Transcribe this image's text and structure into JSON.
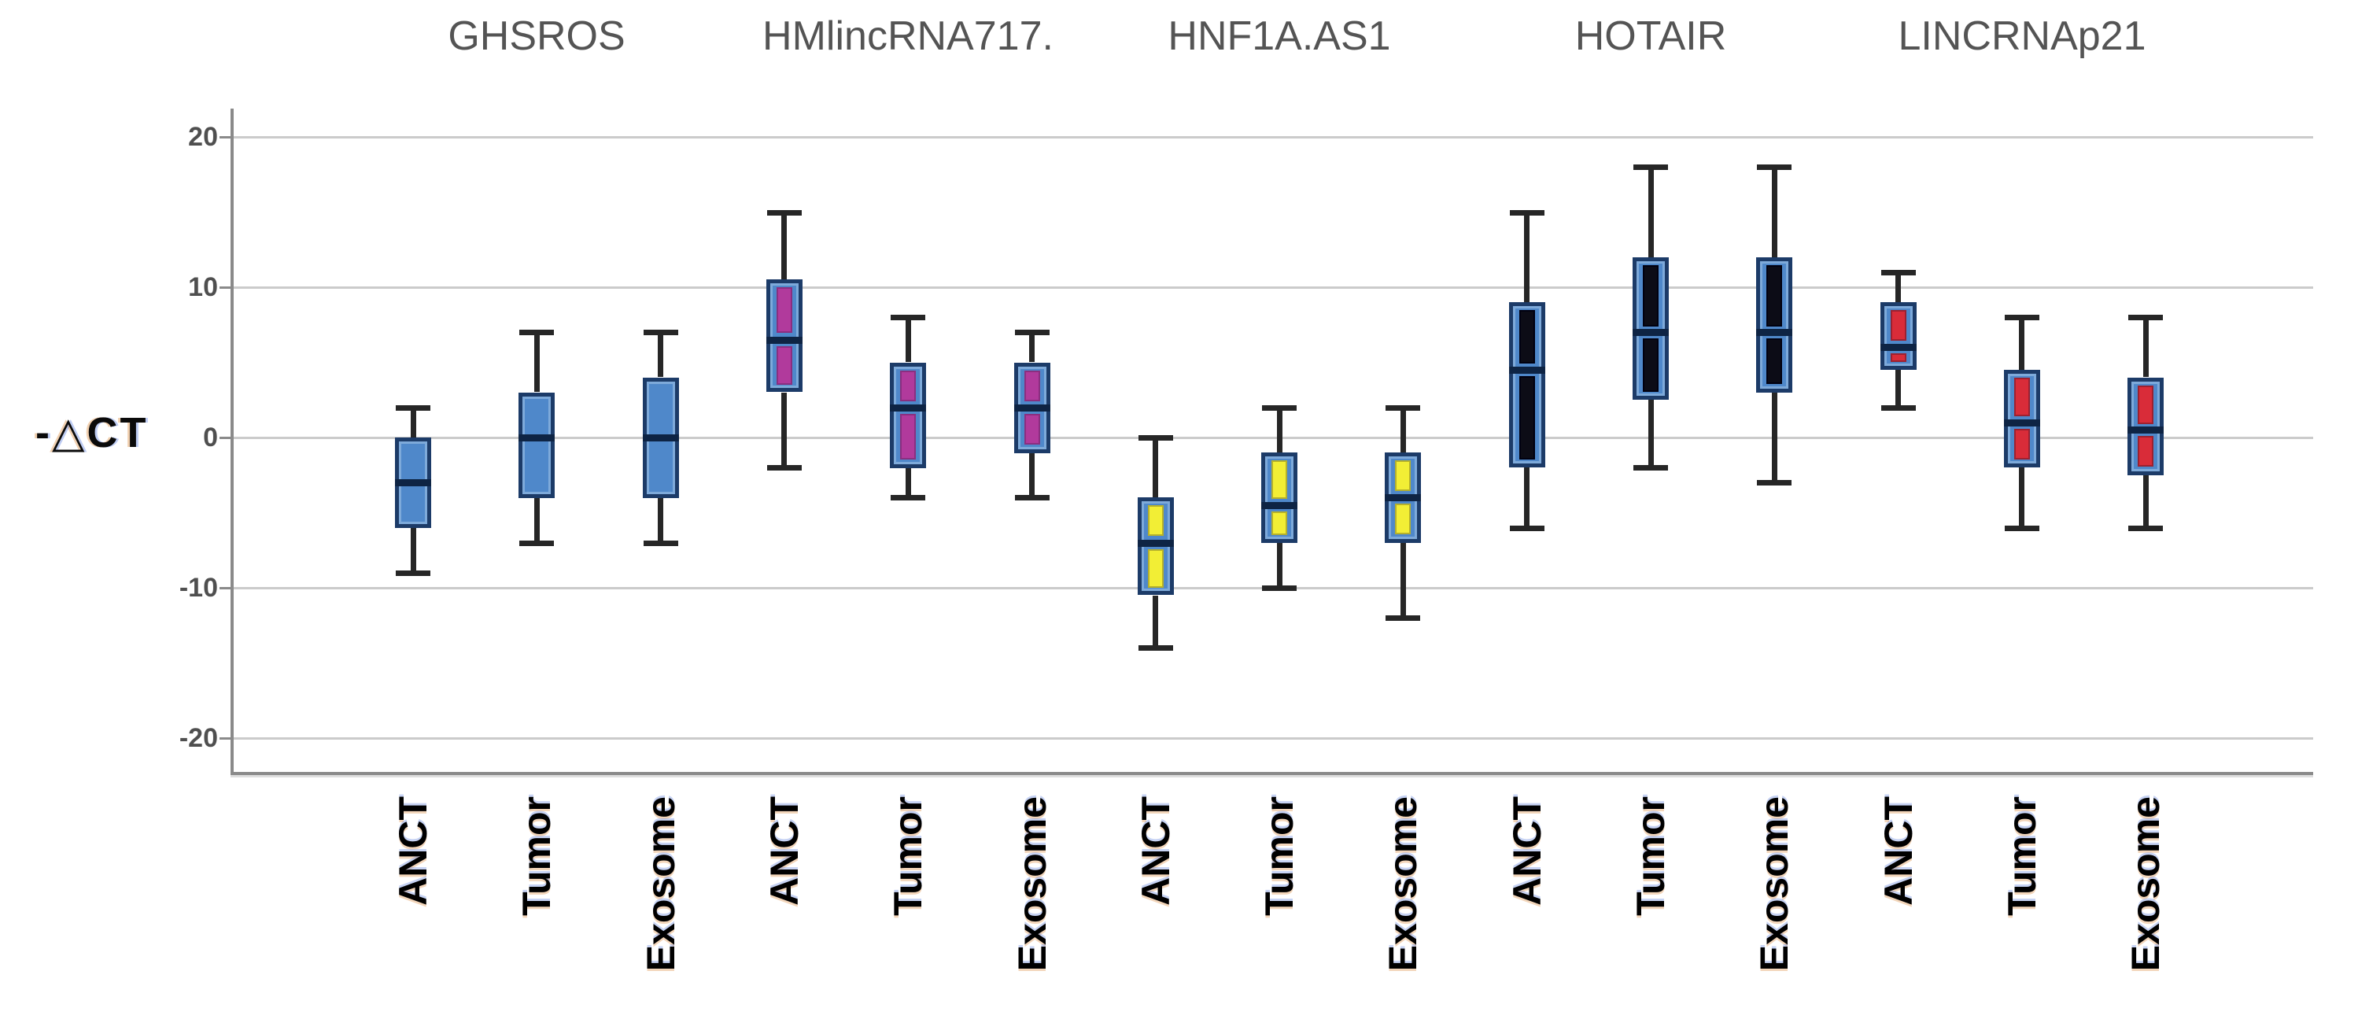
{
  "chart_data": {
    "type": "box",
    "title": "",
    "ylabel": "-△CT",
    "xlabel": "",
    "ylim": [
      -22,
      22
    ],
    "yticks": [
      20,
      10,
      0,
      -10,
      -20
    ],
    "grid": true,
    "legend": "none",
    "categories_per_group": [
      "ANCT",
      "Tumor",
      "Exosome"
    ],
    "groups": [
      {
        "label": "GHSROS",
        "inner_color": null,
        "inner_border": null,
        "boxes": [
          {
            "category": "ANCT",
            "whisker_low": -9,
            "q1": -6,
            "median": -3,
            "q3": 0,
            "whisker_high": 2
          },
          {
            "category": "Tumor",
            "whisker_low": -7,
            "q1": -4,
            "median": 0,
            "q3": 3,
            "whisker_high": 7
          },
          {
            "category": "Exosome",
            "whisker_low": -7,
            "q1": -4,
            "median": 0,
            "q3": 4,
            "whisker_high": 7
          }
        ]
      },
      {
        "label": "HMlincRNA717.",
        "inner_color": "#b13a9c",
        "inner_border": "#8a2f80",
        "boxes": [
          {
            "category": "ANCT",
            "whisker_low": -2,
            "q1": 3,
            "median": 6.5,
            "q3": 10.5,
            "whisker_high": 15
          },
          {
            "category": "Tumor",
            "whisker_low": -4,
            "q1": -2,
            "median": 2,
            "q3": 5,
            "whisker_high": 8
          },
          {
            "category": "Exosome",
            "whisker_low": -4,
            "q1": -1,
            "median": 2,
            "q3": 5,
            "whisker_high": 7
          }
        ]
      },
      {
        "label": "HNF1A.AS1",
        "inner_color": "#f2ee35",
        "inner_border": "#b5b02c",
        "boxes": [
          {
            "category": "ANCT",
            "whisker_low": -14,
            "q1": -10.5,
            "median": -7,
            "q3": -4,
            "whisker_high": 0
          },
          {
            "category": "Tumor",
            "whisker_low": -10,
            "q1": -7,
            "median": -4.5,
            "q3": -1,
            "whisker_high": 2
          },
          {
            "category": "Exosome",
            "whisker_low": -12,
            "q1": -7,
            "median": -4,
            "q3": -1,
            "whisker_high": 2
          }
        ]
      },
      {
        "label": "HOTAIR",
        "inner_color": "#0c0c16",
        "inner_border": "#000010",
        "boxes": [
          {
            "category": "ANCT",
            "whisker_low": -6,
            "q1": -2,
            "median": 4.5,
            "q3": 9,
            "whisker_high": 15
          },
          {
            "category": "Tumor",
            "whisker_low": -2,
            "q1": 2.5,
            "median": 7,
            "q3": 12,
            "whisker_high": 18
          },
          {
            "category": "Exosome",
            "whisker_low": -3,
            "q1": 3,
            "median": 7,
            "q3": 12,
            "whisker_high": 18
          }
        ]
      },
      {
        "label": "LINCRNAp21",
        "inner_color": "#d92c39",
        "inner_border": "#9c2130",
        "boxes": [
          {
            "category": "ANCT",
            "whisker_low": 2,
            "q1": 4.5,
            "median": 6,
            "q3": 9,
            "whisker_high": 11
          },
          {
            "category": "Tumor",
            "whisker_low": -6,
            "q1": -2,
            "median": 1,
            "q3": 4.5,
            "whisker_high": 8
          },
          {
            "category": "Exosome",
            "whisker_low": -6,
            "q1": -2.5,
            "median": 0.5,
            "q3": 4,
            "whisker_high": 8
          }
        ]
      }
    ],
    "colors": {
      "box_fill": "#4f88ca",
      "box_border": "#1c3b68",
      "median_line": "#0e2444",
      "whisker": "#262626",
      "gridline": "#cbcbcb",
      "axis": "#8a8a8a",
      "group_title_text": "#545454",
      "tick_text": "#4f4f4f",
      "x_label_text": "#000000",
      "background": "#ffffff"
    }
  }
}
